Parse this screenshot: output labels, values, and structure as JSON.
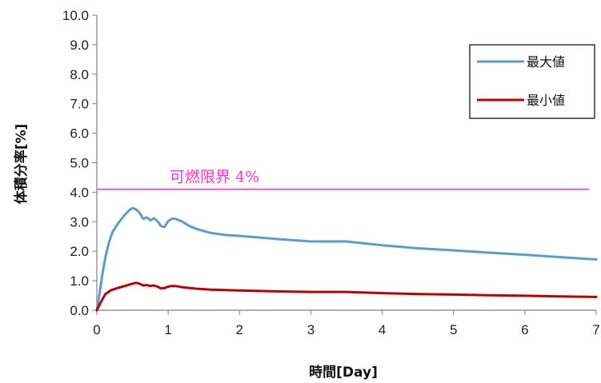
{
  "chart_data": {
    "type": "line",
    "title": "",
    "xlabel": "時間[Day]",
    "ylabel": "体積分率[%]",
    "xlim": [
      0,
      7
    ],
    "ylim": [
      0,
      10
    ],
    "x_ticks": [
      "0",
      "1",
      "2",
      "3",
      "4",
      "5",
      "6",
      "7"
    ],
    "y_ticks": [
      "0.0",
      "1.0",
      "2.0",
      "3.0",
      "4.0",
      "5.0",
      "6.0",
      "7.0",
      "8.0",
      "9.0",
      "10.0"
    ],
    "grid": false,
    "legend_position": "top-right",
    "series": [
      {
        "name": "最大値",
        "color": "#5b9bd5",
        "points": [
          [
            0,
            0
          ],
          [
            0.04,
            0.6
          ],
          [
            0.08,
            1.25
          ],
          [
            0.12,
            1.8
          ],
          [
            0.17,
            2.3
          ],
          [
            0.22,
            2.65
          ],
          [
            0.3,
            2.95
          ],
          [
            0.38,
            3.2
          ],
          [
            0.45,
            3.38
          ],
          [
            0.5,
            3.46
          ],
          [
            0.55,
            3.42
          ],
          [
            0.6,
            3.3
          ],
          [
            0.65,
            3.1
          ],
          [
            0.7,
            3.15
          ],
          [
            0.75,
            3.05
          ],
          [
            0.8,
            3.12
          ],
          [
            0.85,
            3.02
          ],
          [
            0.9,
            2.85
          ],
          [
            0.95,
            2.82
          ],
          [
            1.0,
            3.02
          ],
          [
            1.05,
            3.1
          ],
          [
            1.1,
            3.1
          ],
          [
            1.2,
            3.0
          ],
          [
            1.3,
            2.85
          ],
          [
            1.4,
            2.75
          ],
          [
            1.6,
            2.62
          ],
          [
            1.8,
            2.55
          ],
          [
            2.0,
            2.52
          ],
          [
            2.5,
            2.42
          ],
          [
            3.0,
            2.33
          ],
          [
            3.5,
            2.33
          ],
          [
            4.0,
            2.2
          ],
          [
            4.5,
            2.1
          ],
          [
            5.0,
            2.03
          ],
          [
            5.5,
            1.95
          ],
          [
            6.0,
            1.88
          ],
          [
            6.5,
            1.8
          ],
          [
            7.0,
            1.72
          ]
        ]
      },
      {
        "name": "最小値",
        "color": "#c00000",
        "points": [
          [
            0,
            0
          ],
          [
            0.05,
            0.25
          ],
          [
            0.12,
            0.55
          ],
          [
            0.2,
            0.68
          ],
          [
            0.3,
            0.76
          ],
          [
            0.4,
            0.83
          ],
          [
            0.5,
            0.9
          ],
          [
            0.55,
            0.93
          ],
          [
            0.6,
            0.9
          ],
          [
            0.65,
            0.84
          ],
          [
            0.7,
            0.85
          ],
          [
            0.75,
            0.82
          ],
          [
            0.8,
            0.84
          ],
          [
            0.85,
            0.8
          ],
          [
            0.9,
            0.74
          ],
          [
            0.95,
            0.75
          ],
          [
            1.0,
            0.8
          ],
          [
            1.05,
            0.82
          ],
          [
            1.1,
            0.82
          ],
          [
            1.2,
            0.78
          ],
          [
            1.4,
            0.73
          ],
          [
            1.6,
            0.7
          ],
          [
            2.0,
            0.67
          ],
          [
            2.5,
            0.64
          ],
          [
            3.0,
            0.62
          ],
          [
            3.5,
            0.62
          ],
          [
            4.0,
            0.58
          ],
          [
            4.5,
            0.55
          ],
          [
            5.0,
            0.53
          ],
          [
            5.5,
            0.51
          ],
          [
            6.0,
            0.49
          ],
          [
            6.5,
            0.47
          ],
          [
            7.0,
            0.45
          ]
        ]
      }
    ],
    "annotations": [
      {
        "text": "可燃限界 4%",
        "y": 4.1,
        "x_start": 0,
        "x_end": 6.9,
        "color": "#ff33cc"
      }
    ]
  }
}
